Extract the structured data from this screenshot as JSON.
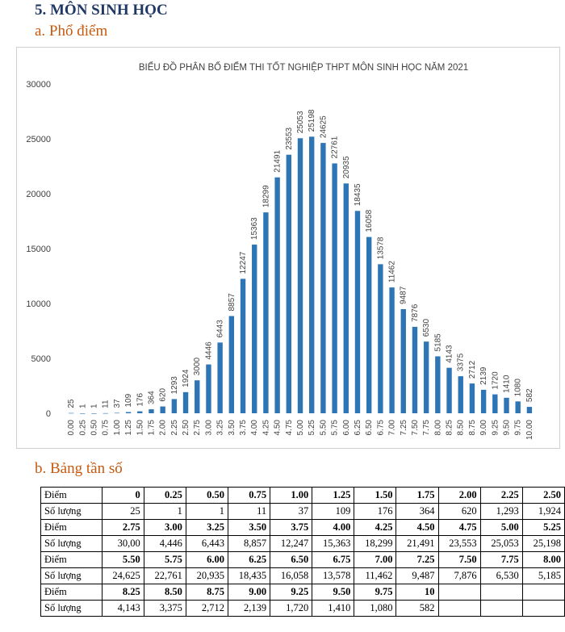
{
  "heading": "5.  MÔN SINH HỌC",
  "section_a": "a.  Phổ điểm",
  "section_b": "b.  Bảng tần số",
  "chart_data": {
    "type": "bar",
    "title": "BIỂU ĐỒ PHÂN BỐ ĐIỂM THI TỐT NGHIỆP THPT MÔN SINH HỌC NĂM 2021",
    "categories": [
      "0.00",
      "0.25",
      "0.50",
      "0.75",
      "1.00",
      "1.25",
      "1.50",
      "1.75",
      "2.00",
      "2.25",
      "2.50",
      "2.75",
      "3.00",
      "3.25",
      "3.50",
      "3.75",
      "4.00",
      "4.25",
      "4.50",
      "4.75",
      "5.00",
      "5.25",
      "5.50",
      "5.75",
      "6.00",
      "6.25",
      "6.50",
      "6.75",
      "7.00",
      "7.25",
      "7.50",
      "7.75",
      "8.00",
      "8.25",
      "8.50",
      "8.75",
      "9.00",
      "9.25",
      "9.50",
      "9.75",
      "10.00"
    ],
    "values": [
      25,
      1,
      1,
      11,
      37,
      109,
      176,
      364,
      620,
      1293,
      1924,
      3000,
      4446,
      6443,
      8857,
      12247,
      15363,
      18299,
      21491,
      23553,
      25053,
      25198,
      24625,
      22761,
      20935,
      18435,
      16058,
      13578,
      11462,
      9487,
      7876,
      6530,
      5185,
      4143,
      3375,
      2712,
      2139,
      1720,
      1410,
      1080,
      582
    ],
    "ylim": [
      0,
      30000
    ],
    "yticks": [
      0,
      5000,
      10000,
      15000,
      20000,
      25000,
      30000
    ],
    "xlabel": "",
    "ylabel": "",
    "color": "#2e75b6"
  },
  "table": {
    "row_label_score": "Điểm",
    "row_label_count": "Số lượng",
    "rows": [
      {
        "scores": [
          "0",
          "0.25",
          "0.50",
          "0.75",
          "1.00",
          "1.25",
          "1.50",
          "1.75",
          "2.00",
          "2.25",
          "2.50"
        ],
        "counts": [
          "25",
          "1",
          "1",
          "11",
          "37",
          "109",
          "176",
          "364",
          "620",
          "1,293",
          "1,924"
        ]
      },
      {
        "scores": [
          "2.75",
          "3.00",
          "3.25",
          "3.50",
          "3.75",
          "4.00",
          "4.25",
          "4.50",
          "4.75",
          "5.00",
          "5.25"
        ],
        "counts": [
          "30,00",
          "4,446",
          "6,443",
          "8,857",
          "12,247",
          "15,363",
          "18,299",
          "21,491",
          "23,553",
          "25,053",
          "25,198"
        ]
      },
      {
        "scores": [
          "5.50",
          "5.75",
          "6.00",
          "6.25",
          "6.50",
          "6.75",
          "7.00",
          "7.25",
          "7.50",
          "7.75",
          "8.00"
        ],
        "counts": [
          "24,625",
          "22,761",
          "20,935",
          "18,435",
          "16,058",
          "13,578",
          "11,462",
          "9,487",
          "7,876",
          "6,530",
          "5,185"
        ]
      },
      {
        "scores": [
          "8.25",
          "8.50",
          "8.75",
          "9.00",
          "9.25",
          "9.50",
          "9.75",
          "10",
          "",
          "",
          ""
        ],
        "counts": [
          "4,143",
          "3,375",
          "2,712",
          "2,139",
          "1,720",
          "1,410",
          "1,080",
          "582",
          "",
          "",
          ""
        ]
      }
    ]
  }
}
